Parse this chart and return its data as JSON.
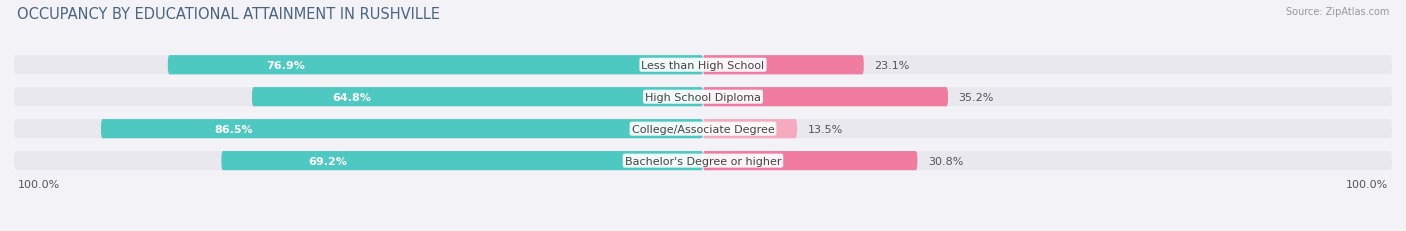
{
  "title": "OCCUPANCY BY EDUCATIONAL ATTAINMENT IN RUSHVILLE",
  "source": "Source: ZipAtlas.com",
  "categories": [
    "Less than High School",
    "High School Diploma",
    "College/Associate Degree",
    "Bachelor's Degree or higher"
  ],
  "owner_values": [
    76.9,
    64.8,
    86.5,
    69.2
  ],
  "renter_values": [
    23.1,
    35.2,
    13.5,
    30.8
  ],
  "owner_color": "#4EC9C1",
  "renter_color": "#F07CA0",
  "renter_color_light": "#F5AABF",
  "bar_bg_color": "#E8E8EE",
  "background_color": "#F2F2F7",
  "title_color": "#4A6580",
  "label_color": "#444444",
  "value_color_white": "#FFFFFF",
  "value_color_dark": "#555555",
  "title_fontsize": 10.5,
  "label_fontsize": 8.0,
  "value_fontsize": 8.0,
  "axis_label_fontsize": 8,
  "legend_fontsize": 8.0,
  "x_left_label": "100.0%",
  "x_right_label": "100.0%"
}
